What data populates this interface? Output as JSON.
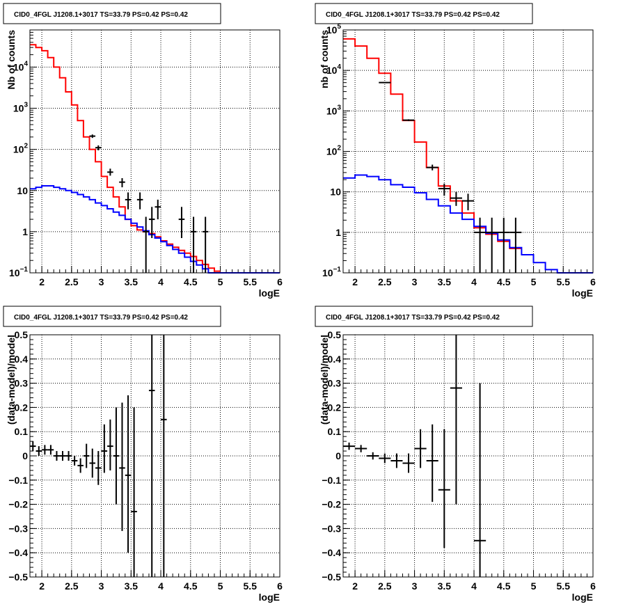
{
  "chart_data": [
    {
      "type": "histogram",
      "title": "CID0_4FGL J1208.1+3017 TS=33.79 PS=0.42 PS=0.42",
      "xlabel": "logE",
      "ylabel": "Nb of counts",
      "scale_y": "log",
      "xlim": [
        1.8,
        6.0
      ],
      "ylim": [
        0.1,
        80000
      ],
      "xticks": [
        2,
        2.5,
        3,
        3.5,
        4,
        4.5,
        5,
        5.5,
        6
      ],
      "xtick_labels": [
        "2",
        "2.5",
        "3",
        "3.5",
        "4",
        "4.5",
        "5",
        "5.5",
        "6"
      ],
      "yticks": [
        0.1,
        1,
        10,
        100,
        1000,
        10000
      ],
      "ytick_labels": [
        {
          "base": "10",
          "exp": "−1"
        },
        {
          "base": "1",
          "exp": ""
        },
        {
          "base": "10",
          "exp": ""
        },
        {
          "base": "10",
          "exp": "2"
        },
        {
          "base": "10",
          "exp": "3"
        },
        {
          "base": "10",
          "exp": "4"
        }
      ],
      "grid": true,
      "series": [
        {
          "kind": "step",
          "color": "#ff0000",
          "edges": [
            1.8,
            1.9,
            2.0,
            2.1,
            2.2,
            2.3,
            2.4,
            2.5,
            2.6,
            2.7,
            2.8,
            2.9,
            3.0,
            3.1,
            3.2,
            3.3,
            3.4,
            3.5,
            3.6,
            3.7,
            3.8,
            3.9,
            4.0,
            4.1,
            4.2,
            4.3,
            4.4,
            4.5,
            4.6,
            4.7,
            4.8,
            4.9,
            5.0
          ],
          "values": [
            35000,
            30000,
            25000,
            17000,
            10000,
            5500,
            2500,
            1200,
            500,
            200,
            100,
            50,
            22,
            12,
            7,
            4,
            2,
            1.4,
            1.1,
            1.0,
            0.9,
            0.75,
            0.6,
            0.5,
            0.42,
            0.35,
            0.3,
            0.25,
            0.2,
            0.16,
            0.13,
            0.11
          ]
        },
        {
          "kind": "step",
          "color": "#0000ff",
          "edges": [
            1.8,
            1.9,
            2.0,
            2.1,
            2.2,
            2.3,
            2.4,
            2.5,
            2.6,
            2.7,
            2.8,
            2.9,
            3.0,
            3.1,
            3.2,
            3.3,
            3.4,
            3.5,
            3.6,
            3.7,
            3.8,
            3.9,
            4.0,
            4.1,
            4.2,
            4.3,
            4.4,
            4.5,
            4.6,
            4.7,
            4.8,
            4.9,
            5.0,
            5.1,
            5.2,
            5.3,
            5.4,
            5.5,
            5.6,
            5.7,
            5.8,
            5.9,
            6.0
          ],
          "values": [
            11,
            12,
            13,
            13,
            12,
            11,
            10,
            9,
            8,
            7,
            6,
            5,
            4.3,
            3.6,
            3.0,
            2.5,
            2.0,
            1.6,
            1.3,
            1.05,
            0.85,
            0.7,
            0.57,
            0.46,
            0.37,
            0.3,
            0.24,
            0.19,
            0.155,
            0.125,
            0.1,
            0.1,
            0.1,
            0.1,
            0.1,
            0.1,
            0.1,
            0.1,
            0.1,
            0.1,
            0.1,
            0.1
          ]
        },
        {
          "kind": "points",
          "color": "#000000",
          "points": [
            {
              "x": 2.85,
              "y": 210,
              "xerr": 0.05,
              "ylo": 190,
              "yhi": 230
            },
            {
              "x": 2.95,
              "y": 110,
              "xerr": 0.05,
              "ylo": 95,
              "yhi": 125
            },
            {
              "x": 3.15,
              "y": 28,
              "xerr": 0.05,
              "ylo": 23,
              "yhi": 34
            },
            {
              "x": 3.35,
              "y": 16,
              "xerr": 0.05,
              "ylo": 12,
              "yhi": 20
            },
            {
              "x": 3.45,
              "y": 6,
              "xerr": 0.05,
              "ylo": 3.5,
              "yhi": 9
            },
            {
              "x": 3.65,
              "y": 6,
              "xerr": 0.05,
              "ylo": 3.5,
              "yhi": 9
            },
            {
              "x": 3.75,
              "y": 1,
              "xerr": 0.05,
              "ylo": 0.1,
              "yhi": 2.3
            },
            {
              "x": 3.85,
              "y": 2,
              "xerr": 0.05,
              "ylo": 0.7,
              "yhi": 4
            },
            {
              "x": 3.95,
              "y": 4,
              "xerr": 0.05,
              "ylo": 2,
              "yhi": 6
            },
            {
              "x": 4.35,
              "y": 2,
              "xerr": 0.05,
              "ylo": 0.7,
              "yhi": 4
            },
            {
              "x": 4.55,
              "y": 1,
              "xerr": 0.05,
              "ylo": 0.1,
              "yhi": 2.3
            },
            {
              "x": 4.75,
              "y": 1,
              "xerr": 0.05,
              "ylo": 0.1,
              "yhi": 2.3
            }
          ]
        }
      ]
    },
    {
      "type": "histogram",
      "title": "CID0_4FGL J1208.1+3017 TS=33.79 PS=0.42 PS=0.42",
      "xlabel": "logE",
      "ylabel": "nb of counts",
      "scale_y": "log",
      "xlim": [
        1.8,
        6.0
      ],
      "ylim": [
        0.1,
        100000
      ],
      "xticks": [
        2,
        2.5,
        3,
        3.5,
        4,
        4.5,
        5,
        5.5,
        6
      ],
      "xtick_labels": [
        "2",
        "2.5",
        "3",
        "3.5",
        "4",
        "4.5",
        "5",
        "5.5",
        "6"
      ],
      "yticks": [
        0.1,
        1,
        10,
        100,
        1000,
        10000,
        100000
      ],
      "ytick_labels": [
        {
          "base": "10",
          "exp": "−1"
        },
        {
          "base": "1",
          "exp": ""
        },
        {
          "base": "10",
          "exp": ""
        },
        {
          "base": "10",
          "exp": "2"
        },
        {
          "base": "10",
          "exp": "3"
        },
        {
          "base": "10",
          "exp": "4"
        },
        {
          "base": "10",
          "exp": "5"
        }
      ],
      "grid": true,
      "series": [
        {
          "kind": "step",
          "color": "#ff0000",
          "edges": [
            1.8,
            2.0,
            2.2,
            2.4,
            2.6,
            2.8,
            3.0,
            3.2,
            3.4,
            3.6,
            3.8,
            4.0,
            4.2,
            4.4,
            4.6,
            4.8
          ],
          "values": [
            60000,
            40000,
            20000,
            8500,
            2600,
            580,
            170,
            40,
            14,
            6,
            3,
            1.3,
            0.9,
            0.6,
            0.4
          ]
        },
        {
          "kind": "step",
          "color": "#0000ff",
          "edges": [
            1.8,
            2.0,
            2.2,
            2.4,
            2.6,
            2.8,
            3.0,
            3.2,
            3.4,
            3.6,
            3.8,
            4.0,
            4.2,
            4.4,
            4.6,
            4.8,
            5.0,
            5.2,
            5.4,
            5.6,
            5.8,
            6.0
          ],
          "values": [
            22,
            26,
            24,
            20,
            15,
            13,
            9.5,
            6.5,
            4.5,
            3.0,
            2.1,
            1.4,
            0.95,
            0.65,
            0.42,
            0.28,
            0.18,
            0.12,
            0.1,
            0.1,
            0.1
          ]
        },
        {
          "kind": "points",
          "color": "#000000",
          "points": [
            {
              "x": 2.5,
              "y": 5000,
              "xerr": 0.1,
              "ylo": 4900,
              "yhi": 5100
            },
            {
              "x": 2.9,
              "y": 590,
              "xerr": 0.1,
              "ylo": 560,
              "yhi": 620
            },
            {
              "x": 3.3,
              "y": 40,
              "xerr": 0.1,
              "ylo": 34,
              "yhi": 47
            },
            {
              "x": 3.5,
              "y": 12,
              "xerr": 0.1,
              "ylo": 8,
              "yhi": 16
            },
            {
              "x": 3.7,
              "y": 7,
              "xerr": 0.1,
              "ylo": 4.5,
              "yhi": 10
            },
            {
              "x": 3.9,
              "y": 6,
              "xerr": 0.1,
              "ylo": 3.5,
              "yhi": 9
            },
            {
              "x": 4.1,
              "y": 1,
              "xerr": 0.1,
              "ylo": 0.1,
              "yhi": 2.3
            },
            {
              "x": 4.3,
              "y": 1,
              "xerr": 0.1,
              "ylo": 0.1,
              "yhi": 2.3
            },
            {
              "x": 4.5,
              "y": 1,
              "xerr": 0.1,
              "ylo": 0.1,
              "yhi": 2.3
            },
            {
              "x": 4.7,
              "y": 1,
              "xerr": 0.1,
              "ylo": 0.1,
              "yhi": 2.3
            }
          ]
        }
      ]
    },
    {
      "type": "scatter",
      "title": "CID0_4FGL J1208.1+3017 TS=33.79 PS=0.42 PS=0.42",
      "xlabel": "logE",
      "ylabel": "(data-model)/model",
      "scale_y": "linear",
      "xlim": [
        1.8,
        6.0
      ],
      "ylim": [
        -0.5,
        0.5
      ],
      "xticks": [
        2,
        2.5,
        3,
        3.5,
        4,
        4.5,
        5,
        5.5,
        6
      ],
      "xtick_labels": [
        "2",
        "2.5",
        "3",
        "3.5",
        "4",
        "4.5",
        "5",
        "5.5",
        "6"
      ],
      "yticks": [
        -0.5,
        -0.4,
        -0.3,
        -0.2,
        -0.1,
        0,
        0.1,
        0.2,
        0.3,
        0.4,
        0.5
      ],
      "ytick_labels": [
        "−0.5",
        "−0.4",
        "−0.3",
        "−0.2",
        "−0.1",
        "0",
        "0.1",
        "0.2",
        "0.3",
        "0.4",
        "0.5"
      ],
      "grid": true,
      "series": [
        {
          "kind": "points",
          "color": "#000000",
          "points": [
            {
              "x": 1.85,
              "y": 0.04,
              "xerr": 0.05,
              "ylo": 0.02,
              "yhi": 0.06
            },
            {
              "x": 1.95,
              "y": 0.02,
              "xerr": 0.05,
              "ylo": 0.0,
              "yhi": 0.04
            },
            {
              "x": 2.05,
              "y": 0.025,
              "xerr": 0.05,
              "ylo": 0.005,
              "yhi": 0.045
            },
            {
              "x": 2.15,
              "y": 0.025,
              "xerr": 0.05,
              "ylo": 0.005,
              "yhi": 0.045
            },
            {
              "x": 2.25,
              "y": 0.0,
              "xerr": 0.05,
              "ylo": -0.02,
              "yhi": 0.02
            },
            {
              "x": 2.35,
              "y": 0.0,
              "xerr": 0.05,
              "ylo": -0.02,
              "yhi": 0.02
            },
            {
              "x": 2.45,
              "y": 0.0,
              "xerr": 0.05,
              "ylo": -0.02,
              "yhi": 0.02
            },
            {
              "x": 2.55,
              "y": -0.02,
              "xerr": 0.05,
              "ylo": -0.04,
              "yhi": 0.0
            },
            {
              "x": 2.65,
              "y": -0.04,
              "xerr": 0.05,
              "ylo": -0.07,
              "yhi": -0.01
            },
            {
              "x": 2.75,
              "y": 0.0,
              "xerr": 0.05,
              "ylo": -0.05,
              "yhi": 0.05
            },
            {
              "x": 2.85,
              "y": -0.03,
              "xerr": 0.05,
              "ylo": -0.09,
              "yhi": 0.03
            },
            {
              "x": 2.95,
              "y": -0.05,
              "xerr": 0.05,
              "ylo": -0.12,
              "yhi": 0.02
            },
            {
              "x": 3.05,
              "y": 0.02,
              "xerr": 0.05,
              "ylo": -0.07,
              "yhi": 0.13
            },
            {
              "x": 3.15,
              "y": 0.04,
              "xerr": 0.05,
              "ylo": -0.06,
              "yhi": 0.15
            },
            {
              "x": 3.25,
              "y": 0.0,
              "xerr": 0.05,
              "ylo": -0.2,
              "yhi": 0.2
            },
            {
              "x": 3.35,
              "y": -0.05,
              "xerr": 0.05,
              "ylo": -0.31,
              "yhi": 0.22
            },
            {
              "x": 3.45,
              "y": -0.08,
              "xerr": 0.05,
              "ylo": -0.4,
              "yhi": 0.25
            },
            {
              "x": 3.55,
              "y": -0.23,
              "xerr": 0.05,
              "ylo": -0.5,
              "yhi": 0.2
            },
            {
              "x": 3.85,
              "y": 0.27,
              "xerr": 0.05,
              "ylo": -0.5,
              "yhi": 0.5
            },
            {
              "x": 4.05,
              "y": 0.15,
              "xerr": 0.05,
              "ylo": -0.5,
              "yhi": 0.5
            }
          ]
        }
      ]
    },
    {
      "type": "scatter",
      "title": "CID0_4FGL J1208.1+3017 TS=33.79 PS=0.42 PS=0.42",
      "xlabel": "logE",
      "ylabel": "(data-model)/model",
      "scale_y": "linear",
      "xlim": [
        1.8,
        6.0
      ],
      "ylim": [
        -0.5,
        0.5
      ],
      "xticks": [
        2,
        2.5,
        3,
        3.5,
        4,
        4.5,
        5,
        5.5,
        6
      ],
      "xtick_labels": [
        "2",
        "2.5",
        "3",
        "3.5",
        "4",
        "4.5",
        "5",
        "5.5",
        "6"
      ],
      "yticks": [
        -0.5,
        -0.4,
        -0.3,
        -0.2,
        -0.1,
        0,
        0.1,
        0.2,
        0.3,
        0.4,
        0.5
      ],
      "ytick_labels": [
        "−0.5",
        "−0.4",
        "−0.3",
        "−0.2",
        "−0.1",
        "0",
        "0.1",
        "0.2",
        "0.3",
        "0.4",
        "0.5"
      ],
      "grid": true,
      "series": [
        {
          "kind": "points",
          "color": "#000000",
          "points": [
            {
              "x": 1.9,
              "y": 0.04,
              "xerr": 0.1,
              "ylo": 0.025,
              "yhi": 0.055
            },
            {
              "x": 2.1,
              "y": 0.03,
              "xerr": 0.1,
              "ylo": 0.015,
              "yhi": 0.045
            },
            {
              "x": 2.3,
              "y": 0.0,
              "xerr": 0.1,
              "ylo": -0.015,
              "yhi": 0.015
            },
            {
              "x": 2.5,
              "y": -0.01,
              "xerr": 0.1,
              "ylo": -0.03,
              "yhi": 0.01
            },
            {
              "x": 2.7,
              "y": -0.02,
              "xerr": 0.1,
              "ylo": -0.05,
              "yhi": 0.01
            },
            {
              "x": 2.9,
              "y": -0.03,
              "xerr": 0.1,
              "ylo": -0.07,
              "yhi": 0.01
            },
            {
              "x": 3.1,
              "y": 0.03,
              "xerr": 0.1,
              "ylo": -0.05,
              "yhi": 0.11
            },
            {
              "x": 3.3,
              "y": -0.02,
              "xerr": 0.1,
              "ylo": -0.19,
              "yhi": 0.13
            },
            {
              "x": 3.5,
              "y": -0.14,
              "xerr": 0.1,
              "ylo": -0.38,
              "yhi": 0.11
            },
            {
              "x": 3.7,
              "y": 0.28,
              "xerr": 0.1,
              "ylo": -0.2,
              "yhi": 0.5
            },
            {
              "x": 4.1,
              "y": -0.35,
              "xerr": 0.1,
              "ylo": -0.5,
              "yhi": 0.3
            }
          ]
        }
      ]
    }
  ]
}
